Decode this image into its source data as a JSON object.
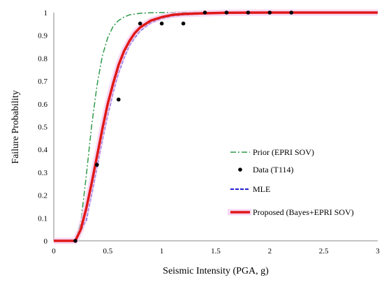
{
  "chart_data": {
    "type": "line",
    "title": "",
    "xlabel": "Seismic Intensity (PGA, g)",
    "ylabel": "Failure Probability",
    "xlim": [
      0,
      3
    ],
    "ylim": [
      0,
      1
    ],
    "xticks": [
      0,
      0.5,
      1,
      1.5,
      2,
      2.5,
      3
    ],
    "yticks": [
      0,
      0.1,
      0.2,
      0.3,
      0.4,
      0.5,
      0.6,
      0.7,
      0.8,
      0.9,
      1
    ],
    "xtick_labels": [
      "0",
      "0.5",
      "1",
      "1.5",
      "2",
      "2.5",
      "3"
    ],
    "ytick_labels": [
      "0",
      "0.1",
      "0.2",
      "0.3",
      "0.4",
      "0.5",
      "0.6",
      "0.7",
      "0.8",
      "0.9",
      "1"
    ],
    "grid": false,
    "legend_position": "center-right",
    "series": [
      {
        "name": "Prior (EPRI SOV)",
        "style": "dashdot",
        "color": "#2e9a48",
        "x": [
          0,
          0.15,
          0.2,
          0.25,
          0.3,
          0.35,
          0.4,
          0.45,
          0.5,
          0.55,
          0.6,
          0.65,
          0.7,
          0.8,
          0.9,
          1.0,
          1.2,
          1.5,
          2.0,
          2.5,
          3.0
        ],
        "y": [
          0,
          0,
          0.0,
          0.08,
          0.28,
          0.5,
          0.68,
          0.81,
          0.89,
          0.94,
          0.965,
          0.98,
          0.99,
          0.997,
          0.999,
          1.0,
          1.0,
          1.0,
          1.0,
          1.0,
          1.0
        ]
      },
      {
        "name": "Data (T114)",
        "style": "markers",
        "color": "#000000",
        "x": [
          0.2,
          0.4,
          0.6,
          0.8,
          1.0,
          1.2,
          1.4,
          1.6,
          1.8,
          2.0,
          2.2
        ],
        "y": [
          0.0,
          0.333,
          0.619,
          0.952,
          0.952,
          0.952,
          1.0,
          1.0,
          1.0,
          1.0,
          1.0
        ]
      },
      {
        "name": "MLE",
        "style": "dashed",
        "color": "#2020d0",
        "x": [
          0,
          0.18,
          0.2,
          0.3,
          0.35,
          0.4,
          0.45,
          0.5,
          0.55,
          0.6,
          0.65,
          0.7,
          0.75,
          0.8,
          0.9,
          1.0,
          1.1,
          1.2,
          1.4,
          1.6,
          2.0,
          2.5,
          3.0
        ],
        "y": [
          0,
          0,
          0.0,
          0.09,
          0.2,
          0.32,
          0.44,
          0.55,
          0.65,
          0.735,
          0.8,
          0.855,
          0.89,
          0.92,
          0.955,
          0.975,
          0.985,
          0.99,
          0.995,
          0.998,
          1.0,
          1.0,
          1.0
        ]
      },
      {
        "name": "Proposed (Bayes+EPRI SOV)",
        "style": "solid",
        "color": "#e01818",
        "x": [
          0,
          0.18,
          0.2,
          0.25,
          0.3,
          0.35,
          0.4,
          0.45,
          0.5,
          0.55,
          0.6,
          0.65,
          0.7,
          0.75,
          0.8,
          0.9,
          1.0,
          1.1,
          1.2,
          1.4,
          1.6,
          2.0,
          2.5,
          3.0
        ],
        "y": [
          0,
          0,
          0.0,
          0.05,
          0.14,
          0.25,
          0.37,
          0.49,
          0.6,
          0.69,
          0.77,
          0.83,
          0.875,
          0.91,
          0.935,
          0.965,
          0.98,
          0.99,
          0.994,
          0.997,
          0.999,
          1.0,
          1.0,
          1.0
        ]
      }
    ]
  }
}
